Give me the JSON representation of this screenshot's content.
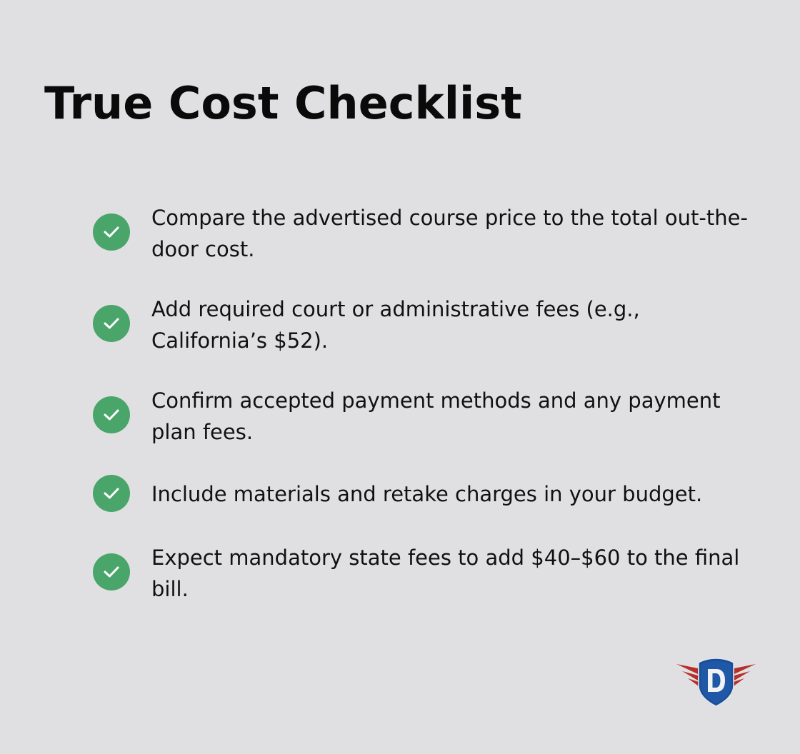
{
  "title": "True Cost Checklist",
  "accent_color": "#4aa56a",
  "items": [
    {
      "icon": "check-circle-icon",
      "text": "Compare the advertised course price to the total out-the-door cost."
    },
    {
      "icon": "check-circle-icon",
      "text": "Add required court or administrative fees (e.g., California’s $52)."
    },
    {
      "icon": "check-circle-icon",
      "text": "Confirm accepted payment methods and any payment plan fees."
    },
    {
      "icon": "check-circle-icon",
      "text": "Include materials and retake charges in your budget."
    },
    {
      "icon": "check-circle-icon",
      "text": "Expect mandatory state fees to add $40–$60 to the final bill."
    }
  ],
  "logo": {
    "icon": "winged-shield-d-logo",
    "letter": "D"
  }
}
